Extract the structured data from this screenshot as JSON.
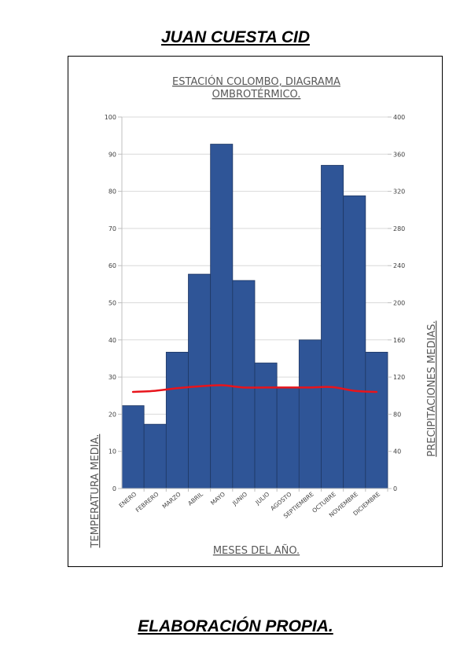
{
  "page": {
    "header": "JUAN CUESTA CID",
    "footer": "ELABORACIÓN PROPIA."
  },
  "chart_data": {
    "type": "bar",
    "title_line1": "ESTACIÓN COLOMBO, DIAGRAMA",
    "title_line2": "OMBROTÉRMICO.",
    "xlabel": "MESES DEL AÑO.",
    "ylabel_left": "TEMPERATURA MEDIA.",
    "ylabel_right": "PRECIPITACIONES MEDIAS.",
    "categories": [
      "ENERO",
      "FEBRERO",
      "MARZO",
      "ABRIL",
      "MAYO",
      "JUNIO",
      "JULIO",
      "AGOSTO",
      "SEPTIEMBRE",
      "OCTUBRE",
      "NOVIEMBRE",
      "DICIEMBRE"
    ],
    "ylim_left": [
      0,
      100
    ],
    "ylim_right": [
      0,
      400
    ],
    "left_ticks": [
      0,
      10,
      20,
      30,
      40,
      50,
      60,
      70,
      80,
      90,
      100
    ],
    "right_ticks": [
      0,
      40,
      80,
      120,
      160,
      200,
      240,
      280,
      320,
      360,
      400
    ],
    "grid": true,
    "series": [
      {
        "type": "bar",
        "axis": "left",
        "color": "#2f5597",
        "values": [
          22.3,
          17.3,
          36.7,
          57.7,
          92.7,
          56,
          33.8,
          27.3,
          40,
          87,
          78.8,
          36.7
        ]
      },
      {
        "type": "line",
        "axis": "left",
        "color": "#e8141b",
        "values": [
          26,
          26.3,
          27,
          27.5,
          27.8,
          27.2,
          27.2,
          27.2,
          27.2,
          27.3,
          26.3,
          26
        ]
      }
    ]
  }
}
